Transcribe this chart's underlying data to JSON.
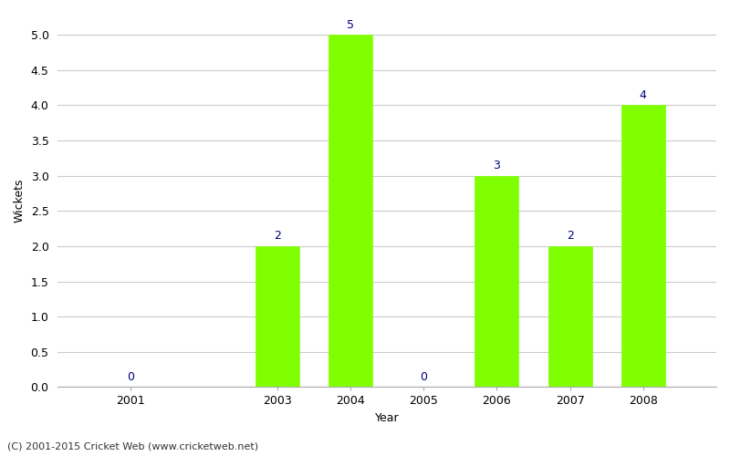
{
  "years": [
    2001,
    2003,
    2004,
    2005,
    2006,
    2007,
    2008
  ],
  "wickets": [
    0,
    2,
    5,
    0,
    3,
    2,
    4
  ],
  "bar_color": "#7fff00",
  "bar_edge_color": "#7fff00",
  "label_color": "#000080",
  "ylabel": "Wickets",
  "xlabel": "Year",
  "footer": "(C) 2001-2015 Cricket Web (www.cricketweb.net)",
  "xlim": [
    2000.0,
    2009.0
  ],
  "ylim": [
    0,
    5.3
  ],
  "yticks": [
    0.0,
    0.5,
    1.0,
    1.5,
    2.0,
    2.5,
    3.0,
    3.5,
    4.0,
    4.5,
    5.0
  ],
  "background_color": "#ffffff",
  "grid_color": "#cccccc",
  "bar_width": 0.6,
  "label_fontsize": 9,
  "axis_label_fontsize": 9,
  "tick_fontsize": 9,
  "footer_fontsize": 8
}
